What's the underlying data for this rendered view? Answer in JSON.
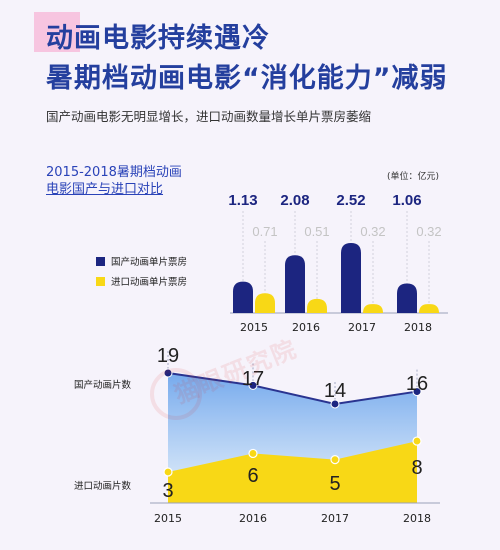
{
  "header": {
    "title_line1": "动画电影持续遇冷",
    "title_line2": "暑期档动画电影“消化能力”减弱",
    "subtitle": "国产动画电影无明显增长，进口动画数量增长单片票房萎缩"
  },
  "section": {
    "title_line1": "2015-2018暑期档动画",
    "title_line2": "电影国产与进口对比"
  },
  "unit_label": "(单位：亿元)",
  "watermark": "猫眼研究院",
  "colors": {
    "domestic": "#1c2580",
    "imported": "#f8d816",
    "domestic_label": "#1c2580",
    "imported_label": "#c4c4c4"
  },
  "chart_data": [
    {
      "type": "bar",
      "categories": [
        "2015",
        "2016",
        "2017",
        "2018"
      ],
      "series": [
        {
          "name": "国产动画单片票房",
          "values": [
            1.13,
            2.08,
            2.52,
            1.06
          ]
        },
        {
          "name": "进口动画单片票房",
          "values": [
            0.71,
            0.51,
            0.32,
            0.32
          ]
        }
      ],
      "unit": "亿元",
      "legend_position": "left"
    },
    {
      "type": "area",
      "x": [
        "2015",
        "2016",
        "2017",
        "2018"
      ],
      "series": [
        {
          "name": "国产动画片数",
          "values": [
            19,
            17,
            14,
            16
          ]
        },
        {
          "name": "进口动画片数",
          "values": [
            3,
            6,
            5,
            8
          ]
        }
      ],
      "legend_position": "left"
    }
  ]
}
